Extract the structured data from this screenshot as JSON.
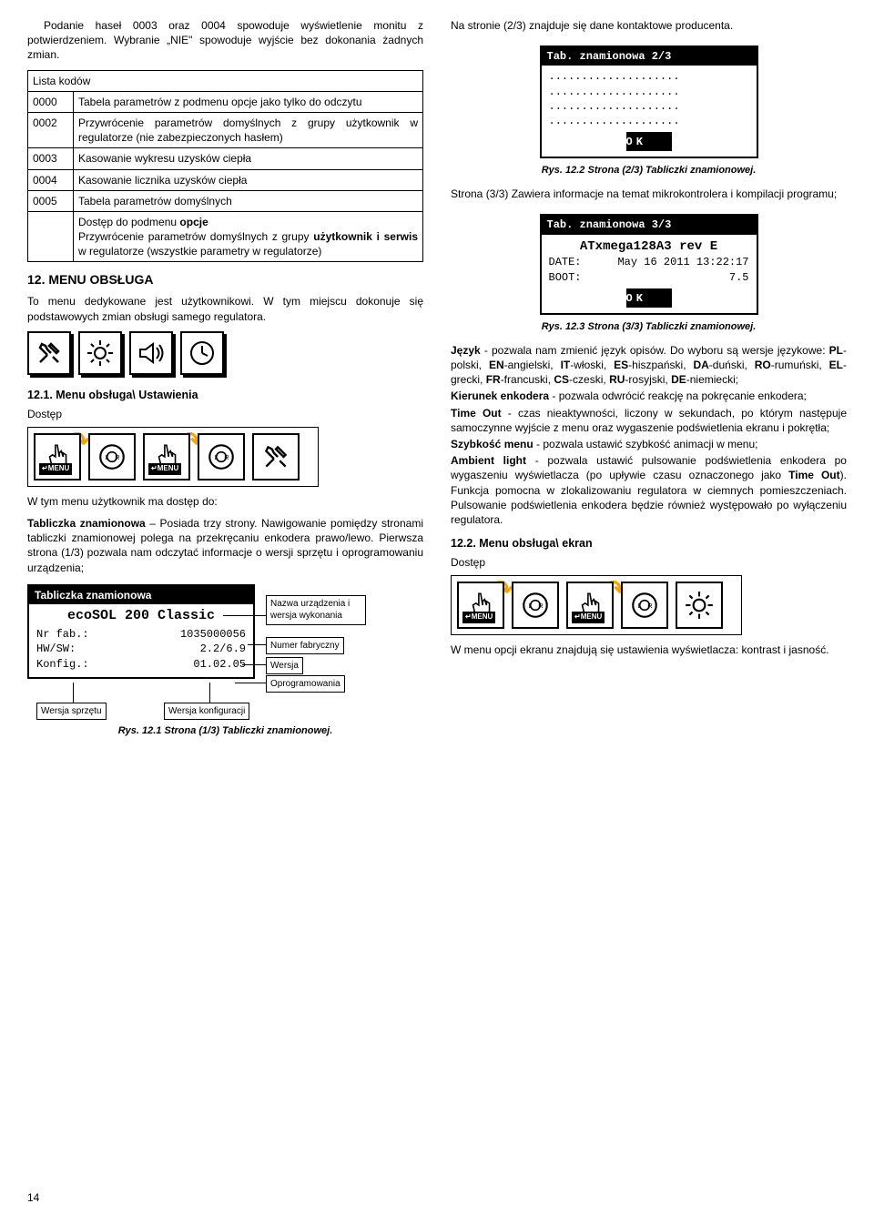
{
  "left": {
    "intro": "Podanie haseł 0003 oraz 0004 spowoduje wyświetlenie monitu z potwierdzeniem. Wybranie „NIE\" spowoduje wyjście bez dokonania żadnych zmian.",
    "table_header": "Lista kodów",
    "rows": [
      {
        "code": "0000",
        "desc": "Tabela parametrów z podmenu opcje jako tylko do odczytu"
      },
      {
        "code": "0002",
        "desc": "Przywrócenie parametrów domyślnych z grupy użytkownik w regulatorze (nie zabezpieczonych hasłem)"
      },
      {
        "code": "0003",
        "desc": "Kasowanie wykresu uzysków ciepła"
      },
      {
        "code": "0004",
        "desc": "Kasowanie licznika uzysków ciepła"
      },
      {
        "code": "0005",
        "desc": "Tabela parametrów domyślnych"
      },
      {
        "code": "",
        "desc_html": "Dostęp do podmenu <b>opcje</b><br>Przywrócenie parametrów domyślnych z grupy <b>użytkownik i serwis</b> w regulatorze (wszystkie parametry w regulatorze)"
      }
    ],
    "h12": "12. MENU OBSŁUGA",
    "menu_desc": "To menu dedykowane jest użytkownikowi. W tym miejscu dokonuje się podstawowych zmian obsługi samego regulatora.",
    "h121": "12.1. Menu obsługa\\ Ustawienia",
    "dostep": "Dostęp",
    "access_desc_1": "W tym menu użytkownik ma dostęp do:",
    "access_desc_2_html": "<b>Tabliczka znamionowa</b> – Posiada trzy strony. Nawigowanie pomiędzy stronami tabliczki znamionowej polega na przekręcaniu enkodera prawo/lewo. Pierwsza strona (1/3) pozwala nam odczytać informacje o wersji sprzętu i oprogramowaniu urządzenia;",
    "nameplate": {
      "title": "Tabliczka znamionowa",
      "model": "ecoSOL 200 Classic",
      "rows": [
        {
          "k": "Nr fab.:",
          "v": "1035000056"
        },
        {
          "k": "HW/SW:",
          "v": "2.2/6.9"
        },
        {
          "k": "Konfig.:",
          "v": "01.02.05"
        }
      ]
    },
    "labels": {
      "name": "Nazwa urządzenia i wersja wykonania",
      "fab": "Numer fabryczny",
      "ver": "Wersja",
      "soft": "Oprogramowania",
      "hw": "Wersja sprzętu",
      "cfg": "Wersja konfiguracji"
    },
    "cap121": "Rys. 12.1 Strona (1/3) Tabliczki znamionowej."
  },
  "right": {
    "intro": "Na stronie (2/3) znajduje się dane kontaktowe producenta.",
    "panel23_title": "Tab. znamionowa 2/3",
    "ok": "OK",
    "cap122": "Rys. 12.2 Strona (2/3) Tabliczki znamionowej.",
    "after122": "Strona (3/3) Zawiera informacje na temat mikrokontrolera i kompilacji programu;",
    "panel33_title": "Tab. znamionowa 3/3",
    "panel33_line1": "ATxmega128A3 rev E",
    "panel33_date_k": "DATE:",
    "panel33_date_v": "May 16 2011 13:22:17",
    "panel33_boot_k": "BOOT:",
    "panel33_boot_v": "7.5",
    "cap123": "Rys. 12.3 Strona (3/3) Tabliczki znamionowej.",
    "defs_html": "<p><b>Język</b> - pozwala nam zmienić język opisów. Do wyboru są wersje językowe: <b>PL</b>-polski, <b>EN</b>-angielski, <b>IT</b>-włoski, <b>ES</b>-hiszpański, <b>DA</b>-duński, <b>RO</b>-rumuński, <b>EL</b>-grecki, <b>FR</b>-francuski, <b>CS</b>-czeski, <b>RU</b>-rosyjski, <b>DE</b>-niemiecki;</p><p><b>Kierunek enkodera</b> - pozwala odwrócić reakcję na pokręcanie enkodera;</p><p><b>Time Out</b> - czas nieaktywności, liczony w sekundach, po którym następuje samoczynne wyjście z menu oraz wygaszenie podświetlenia ekranu i pokrętła;</p><p><b>Szybkość menu</b> - pozwala ustawić szybkość animacji w menu;</p><p><b>Ambient light</b> - pozwala ustawić pulsowanie podświetlenia enkodera po wygaszeniu wyświetlacza (po upływie czasu oznaczonego jako <b>Time Out</b>). Funkcja pomocna w zlokalizowaniu regulatora w ciemnych pomieszczeniach. Pulsowanie podświetlenia enkodera będzie również występowało po wyłączeniu regulatora.</p>",
    "h122": "12.2. Menu obsługa\\ ekran",
    "dostep": "Dostęp",
    "after122b": "W menu opcji ekranu znajdują się ustawienia wyświetlacza: kontrast i jasność."
  },
  "page": "14",
  "icons": {
    "tools": "tools-icon",
    "sun": "sun-brightness-icon",
    "speaker": "speaker-icon",
    "clock": "clock-icon",
    "hand": "hand-pointer-icon",
    "dial": "rotary-dial-icon",
    "wrench_screw": "wrench-screwdriver-icon",
    "menu_badge": "↵MENU"
  }
}
